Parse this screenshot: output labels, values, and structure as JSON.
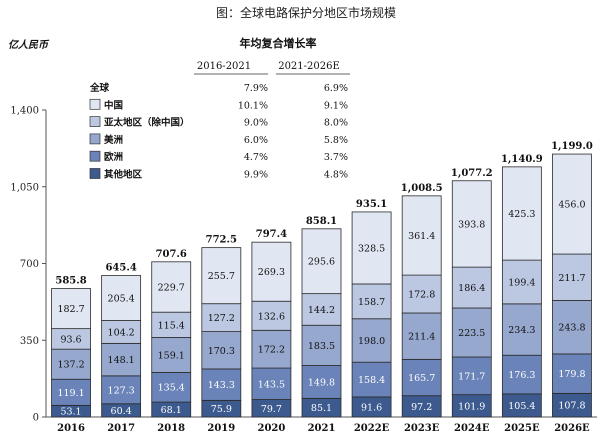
{
  "title": "图：全球电路保护分地区市场规模",
  "unit_label": "亿人民币",
  "cagr_table": {
    "title": "年均复合增长率",
    "headers": [
      "2016-2021",
      "2021-2026E"
    ],
    "rows": [
      {
        "label": "全球",
        "values": [
          "7.9%",
          "6.9%"
        ]
      },
      {
        "label": "中国",
        "values": [
          "10.1%",
          "9.1%"
        ]
      },
      {
        "label": "亚太地区（除中国）",
        "values": [
          "9.0%",
          "8.0%"
        ]
      },
      {
        "label": "美洲",
        "values": [
          "6.0%",
          "5.8%"
        ]
      },
      {
        "label": "欧洲",
        "values": [
          "4.7%",
          "3.7%"
        ]
      },
      {
        "label": "其他地区",
        "values": [
          "9.9%",
          "4.8%"
        ]
      }
    ]
  },
  "chart_data": {
    "type": "bar",
    "stacked": true,
    "title": "图：全球电路保护分地区市场规模",
    "ylabel": "亿人民币",
    "ylim": [
      0,
      1400
    ],
    "yticks": [
      0,
      350,
      700,
      1050,
      1400
    ],
    "yticklabels": [
      "0",
      "350",
      "700",
      "1,050",
      "1,400"
    ],
    "grid": false,
    "legend": "top-left",
    "categories": [
      "2016",
      "2017",
      "2018",
      "2019",
      "2020",
      "2021",
      "2022E",
      "2023E",
      "2024E",
      "2025E",
      "2026E"
    ],
    "series": [
      {
        "name": "其他地区",
        "color": "#3d5a8f",
        "label_color": "#ffffff",
        "values": [
          53.1,
          60.4,
          68.1,
          75.9,
          79.7,
          85.1,
          91.6,
          97.2,
          101.9,
          105.4,
          107.8
        ]
      },
      {
        "name": "欧洲",
        "color": "#6a83b8",
        "label_color": "#ffffff",
        "values": [
          119.1,
          127.3,
          135.4,
          143.3,
          143.5,
          149.8,
          158.4,
          165.7,
          171.7,
          176.3,
          179.8
        ]
      },
      {
        "name": "美洲",
        "color": "#97a8cf",
        "label_color": "#111111",
        "values": [
          137.2,
          148.1,
          159.1,
          170.3,
          172.2,
          183.5,
          198.0,
          211.4,
          223.5,
          234.3,
          243.8
        ]
      },
      {
        "name": "亚太地区（除中国）",
        "color": "#bcc8e2",
        "label_color": "#111111",
        "values": [
          93.6,
          104.2,
          115.4,
          127.2,
          132.6,
          144.2,
          158.7,
          172.8,
          186.4,
          199.4,
          211.7
        ]
      },
      {
        "name": "中国",
        "color": "#e0e6f2",
        "label_color": "#111111",
        "values": [
          182.7,
          205.4,
          229.7,
          255.7,
          269.3,
          295.6,
          328.5,
          361.4,
          393.8,
          425.3,
          456.0
        ]
      }
    ],
    "totals": [
      "585.8",
      "645.4",
      "707.6",
      "772.5",
      "797.4",
      "858.1",
      "935.1",
      "1,008.5",
      "1,077.2",
      "1,140.9",
      "1,199.0"
    ],
    "value_labels": [
      [
        "53.1",
        "60.4",
        "68.1",
        "75.9",
        "79.7",
        "85.1",
        "91.6",
        "97.2",
        "101.9",
        "105.4",
        "107.8"
      ],
      [
        "119.1",
        "127.3",
        "135.4",
        "143.3",
        "143.5",
        "149.8",
        "158.4",
        "165.7",
        "171.7",
        "176.3",
        "179.8"
      ],
      [
        "137.2",
        "148.1",
        "159.1",
        "170.3",
        "172.2",
        "183.5",
        "198.0",
        "211.4",
        "223.5",
        "234.3",
        "243.8"
      ],
      [
        "93.6",
        "104.2",
        "115.4",
        "127.2",
        "132.6",
        "144.2",
        "158.7",
        "172.8",
        "186.4",
        "199.4",
        "211.7"
      ],
      [
        "182.7",
        "205.4",
        "229.7",
        "255.7",
        "269.3",
        "295.6",
        "328.5",
        "361.4",
        "393.8",
        "425.3",
        "456.0"
      ]
    ]
  }
}
